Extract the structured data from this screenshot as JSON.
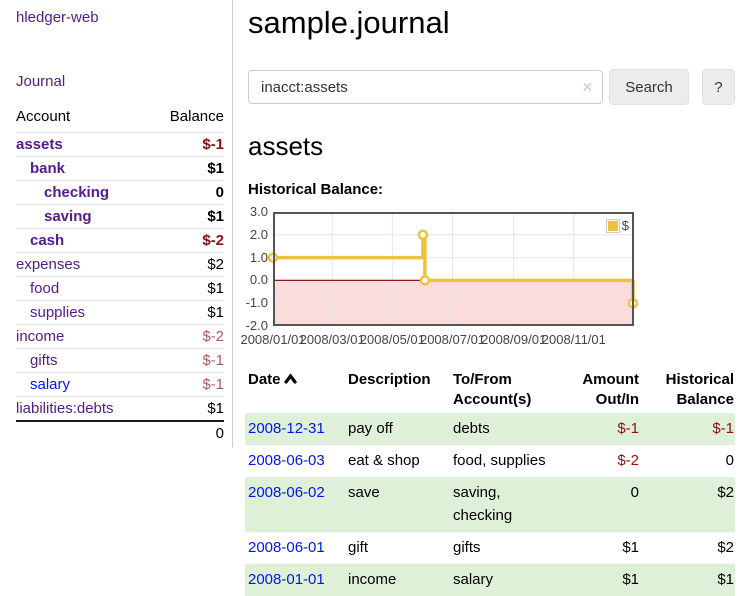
{
  "colors": {
    "link_purple": "#551a8b",
    "link_blue": "#0018e0",
    "negative_strong": "#8b1010",
    "negative_muted": "#b05d5d",
    "row_stripe_green": "#dff0d8",
    "series_gold": "#edc240",
    "negative_region_pink": "#fbdcdc",
    "zero_line_red": "#8b1a1a"
  },
  "sidebar": {
    "brand": "hledger-web",
    "nav_journal": "Journal",
    "accounts": {
      "header_account": "Account",
      "header_balance": "Balance",
      "rows": [
        {
          "label": "assets",
          "indent": 0,
          "bold": true,
          "link": "purple",
          "balance": "$-1",
          "neg": "strong"
        },
        {
          "label": "bank",
          "indent": 1,
          "bold": true,
          "link": "purple",
          "balance": "$1",
          "neg": null
        },
        {
          "label": "checking",
          "indent": 2,
          "bold": true,
          "link": "purple",
          "balance": "0",
          "neg": null
        },
        {
          "label": "saving",
          "indent": 2,
          "bold": true,
          "link": "purple",
          "balance": "$1",
          "neg": null
        },
        {
          "label": "cash",
          "indent": 1,
          "bold": true,
          "link": "purple",
          "balance": "$-2",
          "neg": "strong"
        },
        {
          "label": "expenses",
          "indent": 0,
          "bold": false,
          "link": "purple",
          "balance": "$2",
          "neg": null
        },
        {
          "label": "food",
          "indent": 1,
          "bold": false,
          "link": "purple",
          "balance": "$1",
          "neg": null
        },
        {
          "label": "supplies",
          "indent": 1,
          "bold": false,
          "link": "purple",
          "balance": "$1",
          "neg": null
        },
        {
          "label": "income",
          "indent": 0,
          "bold": false,
          "link": "purple",
          "balance": "$-2",
          "neg": "muted"
        },
        {
          "label": "gifts",
          "indent": 1,
          "bold": false,
          "link": "purple",
          "balance": "$-1",
          "neg": "muted"
        },
        {
          "label": "salary",
          "indent": 1,
          "bold": false,
          "link": "blue",
          "balance": "$-1",
          "neg": "muted"
        },
        {
          "label": "liabilities:debts",
          "indent": 0,
          "bold": false,
          "link": "purple",
          "balance": "$1",
          "neg": null
        }
      ],
      "total": "0"
    }
  },
  "main": {
    "title": "sample.journal",
    "search": {
      "value": "inacct:assets",
      "clear_icon": "✕",
      "search_button": "Search",
      "help_button": "?"
    },
    "account_heading": "assets",
    "chart_heading": "Historical Balance:"
  },
  "chart_data": {
    "type": "line",
    "step": true,
    "title": "Historical Balance:",
    "xlim": [
      "2008-01-01",
      "2009-01-01"
    ],
    "ylim": [
      -2,
      3
    ],
    "y_ticks": [
      3.0,
      2.0,
      1.0,
      0.0,
      -1.0,
      -2.0
    ],
    "x_ticks": [
      "2008/01/01",
      "2008/03/01",
      "2008/05/01",
      "2008/07/01",
      "2008/09/01",
      "2008/11/01"
    ],
    "grid": true,
    "legend_position": "top-right",
    "series": [
      {
        "name": "$",
        "color": "#edc240",
        "points": [
          [
            "2008-01-01",
            1
          ],
          [
            "2008-06-01",
            2
          ],
          [
            "2008-06-03",
            0
          ],
          [
            "2008-12-31",
            -1
          ]
        ]
      }
    ],
    "negative_region_fill": "#fbdcdc",
    "zero_line_color": "#8b1a1a"
  },
  "transactions": {
    "headers": {
      "date": "Date",
      "description": "Description",
      "tofrom_line1": "To/From",
      "tofrom_line2": "Account(s)",
      "amount_line1": "Amount",
      "amount_line2": "Out/In",
      "balance_line1": "Historical",
      "balance_line2": "Balance"
    },
    "rows": [
      {
        "date": "2008-12-31",
        "description": "pay off",
        "accounts": "debts",
        "amount": "$-1",
        "amount_neg": true,
        "balance": "$-1",
        "balance_neg": true,
        "stripe": true
      },
      {
        "date": "2008-06-03",
        "description": "eat & shop",
        "accounts": "food, supplies",
        "amount": "$-2",
        "amount_neg": true,
        "balance": "0",
        "balance_neg": false,
        "stripe": false
      },
      {
        "date": "2008-06-02",
        "description": "save",
        "accounts": "saving, checking",
        "amount": "0",
        "amount_neg": false,
        "balance": "$2",
        "balance_neg": false,
        "stripe": true
      },
      {
        "date": "2008-06-01",
        "description": "gift",
        "accounts": "gifts",
        "amount": "$1",
        "amount_neg": false,
        "balance": "$2",
        "balance_neg": false,
        "stripe": false
      },
      {
        "date": "2008-01-01",
        "description": "income",
        "accounts": "salary",
        "amount": "$1",
        "amount_neg": false,
        "balance": "$1",
        "balance_neg": false,
        "stripe": true
      }
    ]
  }
}
